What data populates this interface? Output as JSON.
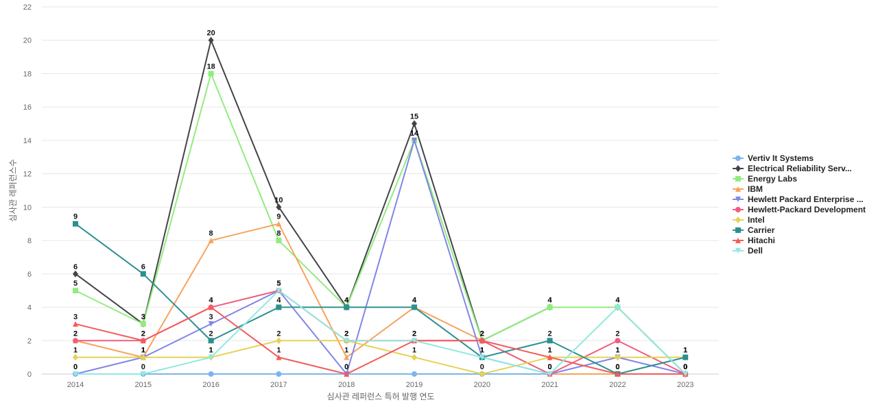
{
  "chart_data": {
    "type": "line",
    "title": "",
    "xlabel": "심사관 레퍼런스 특허 발행 연도",
    "ylabel": "심사관 레퍼런스수",
    "x": [
      "2014",
      "2015",
      "2016",
      "2017",
      "2018",
      "2019",
      "2020",
      "2021",
      "2022",
      "2023"
    ],
    "ylim": [
      0,
      22
    ],
    "yticks": [
      "0",
      "2",
      "4",
      "6",
      "8",
      "10",
      "12",
      "14",
      "16",
      "18",
      "20",
      "22"
    ],
    "grid": true,
    "legend_position": "right",
    "series": [
      {
        "name": "Vertiv It Systems",
        "color": "#7cb5ec",
        "marker": "circle",
        "values": [
          0,
          0,
          0,
          0,
          0,
          0,
          0,
          0,
          0,
          0
        ],
        "labels": false
      },
      {
        "name": "Electrical Reliability Serv...",
        "color": "#434348",
        "marker": "diamond",
        "values": [
          6,
          3,
          20,
          10,
          4,
          15,
          2,
          4,
          4,
          0
        ],
        "labels": true
      },
      {
        "name": "Energy Labs",
        "color": "#90ed7d",
        "marker": "square",
        "values": [
          5,
          3,
          18,
          8,
          4,
          14,
          2,
          4,
          4,
          0
        ],
        "labels": true
      },
      {
        "name": "IBM",
        "color": "#f7a35c",
        "marker": "triangle",
        "values": [
          2,
          1,
          8,
          9,
          1,
          4,
          2,
          0,
          0,
          0
        ],
        "labels": true
      },
      {
        "name": "Hewlett Packard Enterprise ...",
        "color": "#8085e9",
        "marker": "triangle-down",
        "values": [
          0,
          1,
          3,
          5,
          0,
          14,
          1,
          0,
          1,
          0
        ],
        "labels": true
      },
      {
        "name": "Hewlett-Packard Development",
        "color": "#f15c80",
        "marker": "circle",
        "values": [
          2,
          2,
          4,
          5,
          2,
          2,
          2,
          0,
          2,
          0
        ],
        "labels": true
      },
      {
        "name": "Intel",
        "color": "#e4d354",
        "marker": "diamond",
        "values": [
          1,
          1,
          1,
          2,
          2,
          1,
          0,
          1,
          1,
          1
        ],
        "labels": true
      },
      {
        "name": "Carrier",
        "color": "#2b908f",
        "marker": "square",
        "values": [
          9,
          6,
          2,
          4,
          4,
          4,
          1,
          2,
          0,
          1
        ],
        "labels": true
      },
      {
        "name": "Hitachi",
        "color": "#f45b5b",
        "marker": "triangle",
        "values": [
          3,
          2,
          4,
          1,
          0,
          2,
          2,
          1,
          0,
          0
        ],
        "labels": true
      },
      {
        "name": "Dell",
        "color": "#91e8e1",
        "marker": "triangle-down",
        "values": [
          0,
          0,
          1,
          5,
          2,
          2,
          1,
          0,
          4,
          0
        ],
        "labels": true
      }
    ]
  }
}
